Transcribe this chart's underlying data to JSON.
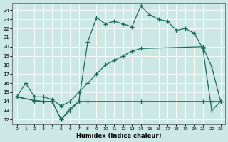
{
  "xlabel": "Humidex (Indice chaleur)",
  "xlim": [
    -0.5,
    23.5
  ],
  "ylim": [
    11.5,
    24.8
  ],
  "yticks": [
    12,
    13,
    14,
    15,
    16,
    17,
    18,
    19,
    20,
    21,
    22,
    23,
    24
  ],
  "xticks": [
    0,
    1,
    2,
    3,
    4,
    5,
    6,
    7,
    8,
    9,
    10,
    11,
    12,
    13,
    14,
    15,
    16,
    17,
    18,
    19,
    20,
    21,
    22,
    23
  ],
  "line_color": "#1a6b5a",
  "bg_color": "#cce8e4",
  "grid_color": "#b0d8d0",
  "line1_x": [
    0,
    2,
    3,
    4,
    5,
    6,
    7,
    8,
    9,
    10,
    11,
    12,
    13,
    14,
    15,
    16,
    17,
    18,
    19,
    20,
    21,
    22,
    23
  ],
  "line1_y": [
    14.5,
    14.1,
    14.0,
    14.0,
    12.0,
    13.0,
    14.0,
    20.5,
    23.2,
    22.5,
    22.8,
    22.5,
    22.2,
    24.5,
    23.5,
    23.0,
    22.8,
    21.8,
    22.0,
    21.5,
    19.8,
    13.0,
    14.0
  ],
  "line2_x": [
    0,
    1,
    2,
    3,
    4,
    5,
    6,
    7,
    8,
    9,
    10,
    11,
    12,
    13,
    14,
    21,
    22,
    23
  ],
  "line2_y": [
    14.5,
    16.0,
    14.5,
    14.5,
    14.2,
    13.5,
    14.0,
    15.0,
    16.0,
    17.0,
    18.0,
    18.5,
    19.0,
    19.5,
    19.8,
    20.0,
    17.8,
    14.0
  ],
  "line3_x": [
    0,
    2,
    3,
    4,
    5,
    6,
    7,
    8,
    14,
    21,
    22,
    23
  ],
  "line3_y": [
    14.5,
    14.1,
    14.0,
    14.0,
    12.0,
    13.2,
    14.0,
    14.0,
    14.0,
    14.0,
    14.0,
    14.0
  ]
}
